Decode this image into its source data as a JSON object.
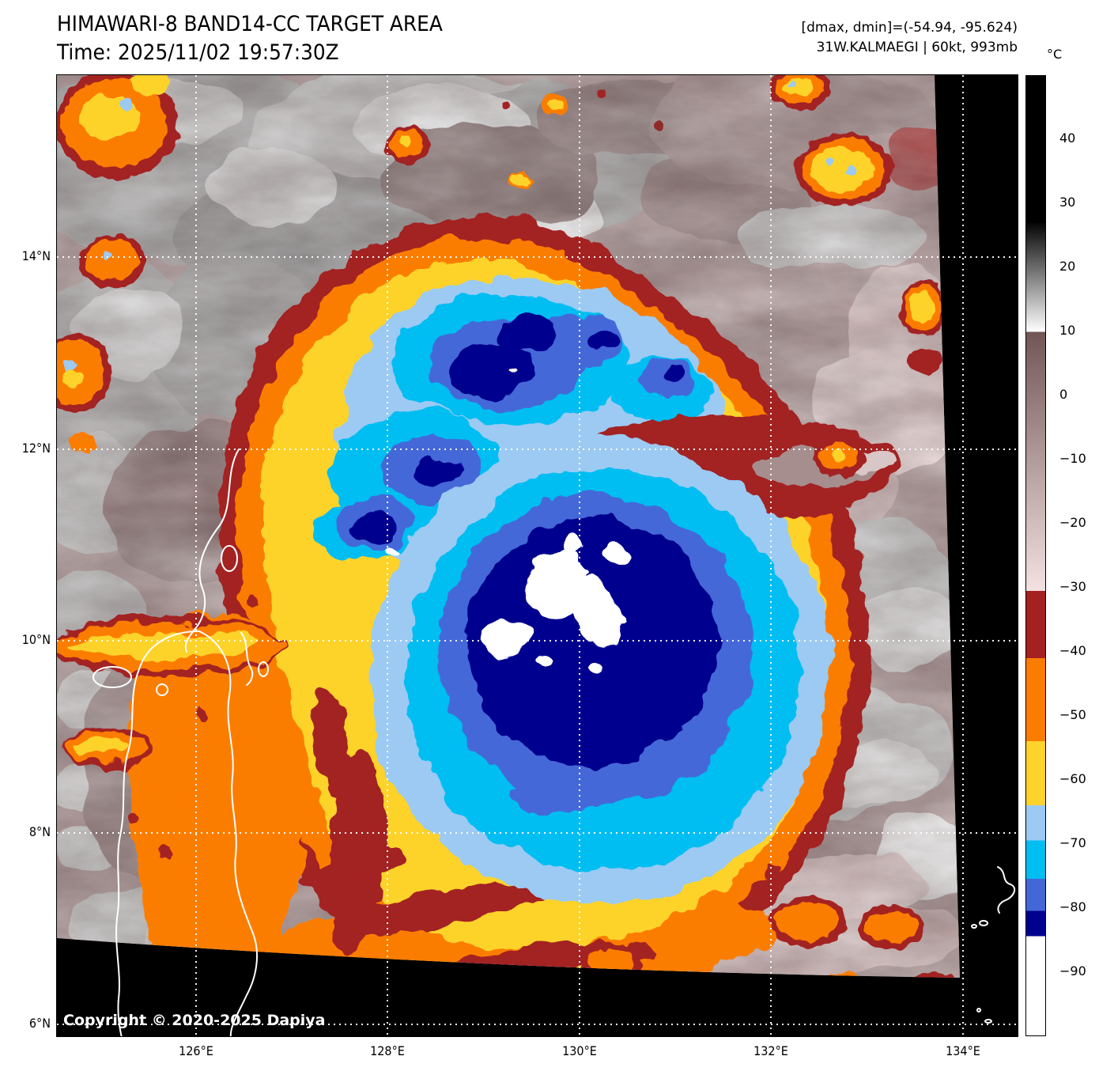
{
  "header": {
    "title": "HIMAWARI-8 BAND14-CC TARGET AREA",
    "time_line": "Time: 2025/11/02 19:57:30Z",
    "dmax_dmin": "[dmax, dmin]=(-54.94, -95.624)",
    "storm_info": "31W.KALMAEGI | 60kt, 993mb"
  },
  "map": {
    "copyright": "Copyright © 2020-2025 Dapiya",
    "no_data_color": "#000000",
    "gridline_color": "#ffffff",
    "coastline_color": "#ffffff",
    "lon_range": {
      "min": 124.55,
      "max": 134.57
    },
    "lat_range": {
      "min": 5.88,
      "max": 15.9
    },
    "lon_ticks": [
      {
        "value": 126,
        "label": "126°E"
      },
      {
        "value": 128,
        "label": "128°E"
      },
      {
        "value": 130,
        "label": "130°E"
      },
      {
        "value": 132,
        "label": "132°E"
      },
      {
        "value": 134,
        "label": "134°E"
      }
    ],
    "lat_ticks": [
      {
        "value": 14,
        "label": "14°N"
      },
      {
        "value": 12,
        "label": "12°N"
      },
      {
        "value": 10,
        "label": "10°N"
      },
      {
        "value": 8,
        "label": "8°N"
      },
      {
        "value": 6,
        "label": "6°N"
      }
    ]
  },
  "colorbar": {
    "unit": "°C",
    "range": {
      "max": 50,
      "min": -100
    },
    "ticks": [
      40,
      30,
      20,
      10,
      0,
      -10,
      -20,
      -30,
      -40,
      -50,
      -60,
      -70,
      -80,
      -90
    ],
    "segments": [
      {
        "from": 50,
        "to": 27,
        "color": "#000000"
      },
      {
        "from": 27,
        "to": 10,
        "gradient": [
          "#050505",
          "#ffffff"
        ]
      },
      {
        "from": 10,
        "to": -30.5,
        "gradient": [
          "#715656",
          "#f4e1e1"
        ]
      },
      {
        "from": -30.5,
        "to": -41,
        "color": "#a32121"
      },
      {
        "from": -41,
        "to": -54,
        "color": "#fb7d00"
      },
      {
        "from": -54,
        "to": -64,
        "color": "#fdd32c"
      },
      {
        "from": -64,
        "to": -69.5,
        "color": "#9ccaf3"
      },
      {
        "from": -69.5,
        "to": -75.5,
        "color": "#00bdf2"
      },
      {
        "from": -75.5,
        "to": -80.5,
        "color": "#4467d8"
      },
      {
        "from": -80.5,
        "to": -84.5,
        "color": "#00008e"
      },
      {
        "from": -84.5,
        "to": -100,
        "color": "#ffffff"
      }
    ]
  }
}
